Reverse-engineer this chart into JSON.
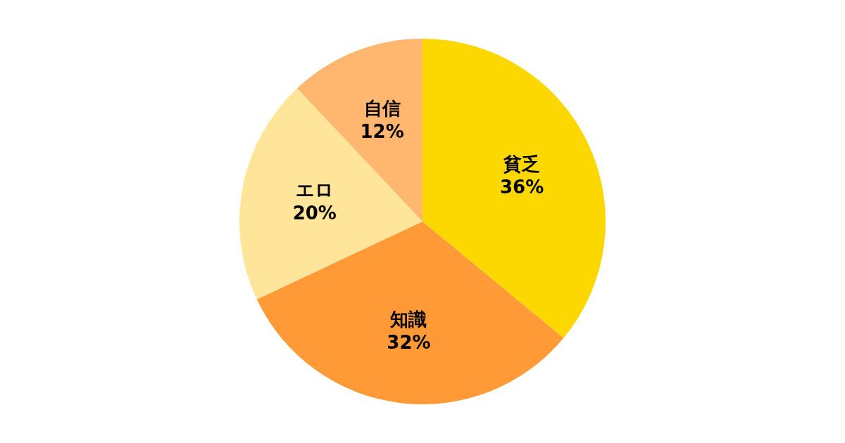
{
  "chart_data": {
    "type": "pie",
    "categories": [
      "貧乏",
      "知識",
      "エロ",
      "自信"
    ],
    "values": [
      36,
      32,
      20,
      12
    ],
    "value_labels": [
      "36%",
      "32%",
      "20%",
      "12%"
    ],
    "colors": [
      "#fdd700",
      "#ff9a36",
      "#ffe599",
      "#ffb66e"
    ]
  }
}
